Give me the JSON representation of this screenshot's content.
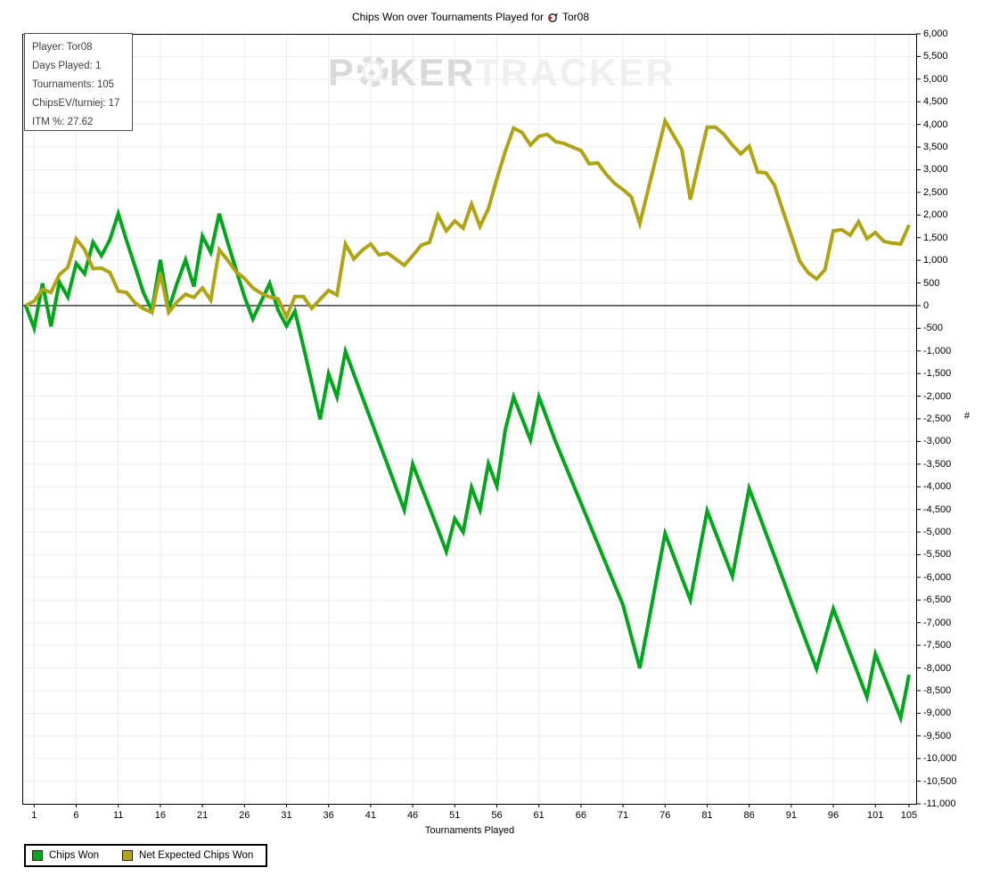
{
  "title": {
    "prefix": "Chips Won over Tournaments Played for",
    "player": "Tor08"
  },
  "watermark": {
    "p": "P",
    "ker": "KER",
    "tracker": "TRACKER"
  },
  "info_box": {
    "lines": [
      "Player: Tor08",
      "Days Played: 1",
      "Tournaments: 105",
      "ChipsEV/turniej: 17",
      "ITM %: 27.62"
    ]
  },
  "colors": {
    "chips_won": "#00a61b",
    "net_expected": "#b0a412",
    "gridline": "#ededed",
    "axis": "#000000",
    "info_text": "#3e3e3e",
    "watermark_dark": "#d9d9d9",
    "watermark_light": "#f0f0f0",
    "title_icon_red": "#cc1f1f"
  },
  "chart_data": {
    "type": "line",
    "title": "Chips Won over Tournaments Played for Tor08",
    "xlabel": "Tournaments Played",
    "ylabel": "#",
    "x_start": 0,
    "x_end": 105,
    "ylim": [
      -11000,
      6000
    ],
    "y_step": 500,
    "grid": true,
    "legend_position": "bottom-left",
    "x_ticks": [
      1,
      6,
      11,
      16,
      21,
      26,
      31,
      36,
      41,
      46,
      51,
      56,
      61,
      66,
      71,
      76,
      81,
      86,
      91,
      96,
      101,
      105
    ],
    "x_tick_labels": [
      "1",
      "6",
      "11",
      "16",
      "21",
      "26",
      "31",
      "36",
      "41",
      "46",
      "51",
      "56",
      "61",
      "66",
      "71",
      "76",
      "81",
      "86",
      "91",
      "96",
      "101",
      "105"
    ],
    "y_tick_labels": [
      "6,000",
      "5,500",
      "5,000",
      "4,500",
      "4,000",
      "3,500",
      "3,000",
      "2,500",
      "2,000",
      "1,500",
      "1,000",
      "500",
      "0",
      "-500",
      "-1,000",
      "-1,500",
      "-2,000",
      "-2,500",
      "-3,000",
      "-3,500",
      "-4,000",
      "-4,500",
      "-5,000",
      "-5,500",
      "-6,000",
      "-6,500",
      "-7,000",
      "-7,500",
      "-8,000",
      "-8,500",
      "-9,000",
      "-9,500",
      "-10,000",
      "-10,500",
      "-11,000"
    ],
    "series": [
      {
        "name": "Chips Won",
        "color": "#00a61b",
        "values": [
          0,
          -500,
          490,
          -460,
          520,
          190,
          930,
          705,
          1400,
          1100,
          1455,
          2030,
          1430,
          860,
          280,
          -105,
          1010,
          -75,
          500,
          1010,
          420,
          1535,
          1175,
          2030,
          1400,
          800,
          200,
          -295,
          100,
          490,
          -100,
          -450,
          -120,
          -900,
          -1700,
          -2510,
          -1505,
          -2016,
          -1010,
          -1510,
          -2010,
          -2510,
          -3010,
          -3510,
          -4010,
          -4510,
          -3500,
          -3980,
          -4460,
          -4940,
          -5430,
          -4705,
          -5000,
          -4016,
          -4508,
          -3490,
          -3983,
          -2750,
          -2014,
          -2490,
          -2965,
          -2014,
          -2510,
          -3010,
          -3460,
          -3910,
          -4360,
          -4810,
          -5260,
          -5710,
          -6160,
          -6610,
          -7310,
          -8006,
          -7020,
          -6030,
          -5033,
          -5520,
          -6010,
          -6497,
          -5510,
          -4530,
          -5010,
          -5490,
          -5972,
          -5000,
          -4036,
          -4530,
          -5030,
          -5530,
          -6030,
          -6530,
          -7030,
          -7530,
          -8020,
          -7350,
          -6693,
          -7180,
          -7670,
          -8160,
          -8645,
          -7692,
          -8160,
          -8630,
          -9104,
          -8152
        ]
      },
      {
        "name": "Net Expected Chips Won",
        "color": "#b0a412",
        "values": [
          0,
          100,
          355,
          290,
          685,
          845,
          1470,
          1240,
          815,
          830,
          730,
          320,
          290,
          60,
          -70,
          -150,
          715,
          -150,
          85,
          250,
          180,
          390,
          120,
          1235,
          1005,
          750,
          600,
          390,
          270,
          190,
          150,
          -250,
          200,
          200,
          -60,
          140,
          335,
          235,
          1360,
          1030,
          1220,
          1360,
          1120,
          1160,
          1025,
          890,
          1100,
          1330,
          1400,
          2000,
          1650,
          1870,
          1710,
          2240,
          1750,
          2140,
          2800,
          3400,
          3920,
          3820,
          3545,
          3740,
          3780,
          3620,
          3580,
          3500,
          3425,
          3130,
          3150,
          2900,
          2700,
          2560,
          2400,
          1810,
          2570,
          3320,
          4075,
          3760,
          3445,
          2340,
          3150,
          3940,
          3940,
          3780,
          3545,
          3350,
          3520,
          2950,
          2930,
          2660,
          2100,
          1550,
          985,
          730,
          590,
          790,
          1650,
          1675,
          1555,
          1850,
          1480,
          1615,
          1420,
          1380,
          1360,
          1780
        ]
      }
    ]
  }
}
